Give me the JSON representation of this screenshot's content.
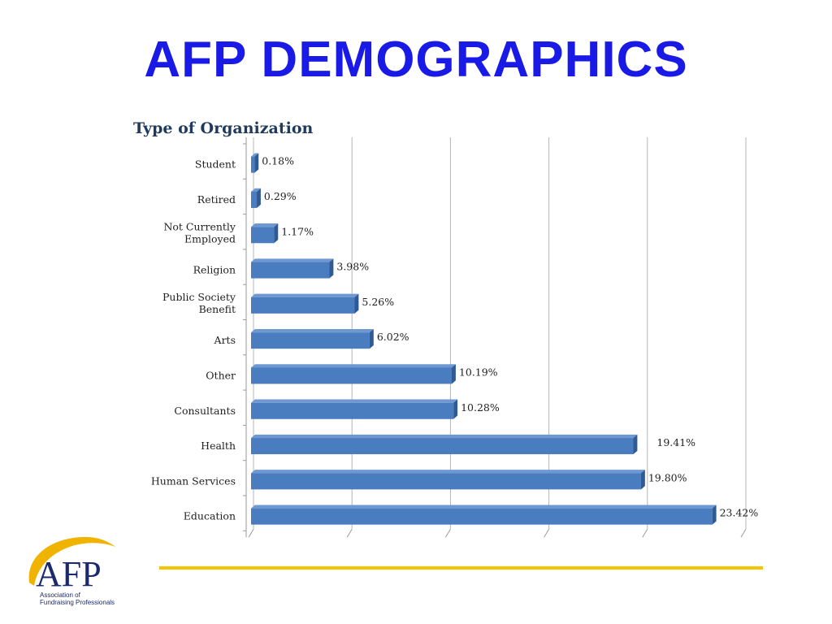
{
  "slide": {
    "title": "AFP DEMOGRAPHICS"
  },
  "logo": {
    "letters": "AFP",
    "tagline_line1": "Association of",
    "tagline_line2": "Fundraising Professionals",
    "colors": {
      "navy": "#1b2a6b",
      "gold": "#f0b400"
    }
  },
  "colors": {
    "title": "#1a1ae6",
    "bar": "#4a7cc0",
    "bar_dark": "#2f5a94",
    "bar_top": "#6e98d2",
    "footer_line": "#f5c400"
  },
  "chart_data": {
    "type": "bar",
    "orientation": "horizontal",
    "title": "Type of Organization",
    "categories": [
      "Student",
      "Retired",
      "Not Currently Employed",
      "Religion",
      "Public Society Benefit",
      "Arts",
      "Other",
      "Consultants",
      "Health",
      "Human Services",
      "Education"
    ],
    "category_lines": [
      [
        "Student"
      ],
      [
        "Retired"
      ],
      [
        "Not Currently",
        "Employed"
      ],
      [
        "Religion"
      ],
      [
        "Public Society",
        "Benefit"
      ],
      [
        "Arts"
      ],
      [
        "Other"
      ],
      [
        "Consultants"
      ],
      [
        "Health"
      ],
      [
        "Human Services"
      ],
      [
        "Education"
      ]
    ],
    "values": [
      0.18,
      0.29,
      1.17,
      3.98,
      5.26,
      6.02,
      10.19,
      10.28,
      19.41,
      19.8,
      23.42
    ],
    "value_labels": [
      "0.18%",
      "0.29%",
      "1.17%",
      "3.98%",
      "5.26%",
      "6.02%",
      "10.19%",
      "10.28%",
      "19.41%",
      "19.80%",
      "23.42%"
    ],
    "unit": "%",
    "xlim": [
      0,
      25
    ],
    "grid": true,
    "legend": "none"
  }
}
